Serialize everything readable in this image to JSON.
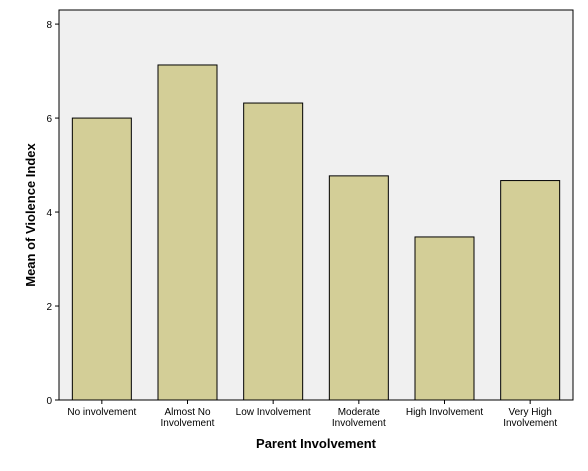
{
  "chart_data": {
    "type": "bar",
    "title": "",
    "xlabel": "Parent Involvement",
    "ylabel": "Mean of Violence Index",
    "categories": [
      [
        "No involvement"
      ],
      [
        "Almost No",
        "Involvement"
      ],
      [
        "Low Involvement"
      ],
      [
        "Moderate",
        "Involvement"
      ],
      [
        "High Involvement"
      ],
      [
        "Very High",
        "Involvement"
      ]
    ],
    "values": [
      6.0,
      7.13,
      6.32,
      4.77,
      3.47,
      4.67
    ],
    "ylim": [
      0,
      8.3
    ],
    "yticks": [
      0,
      2,
      4,
      6,
      8
    ],
    "grid": false,
    "legend": "none",
    "colors": {
      "plot_background": "#f0f0f0",
      "bar_fill": "#d3ce97",
      "bar_stroke": "#000000",
      "frame": "#000000"
    }
  }
}
